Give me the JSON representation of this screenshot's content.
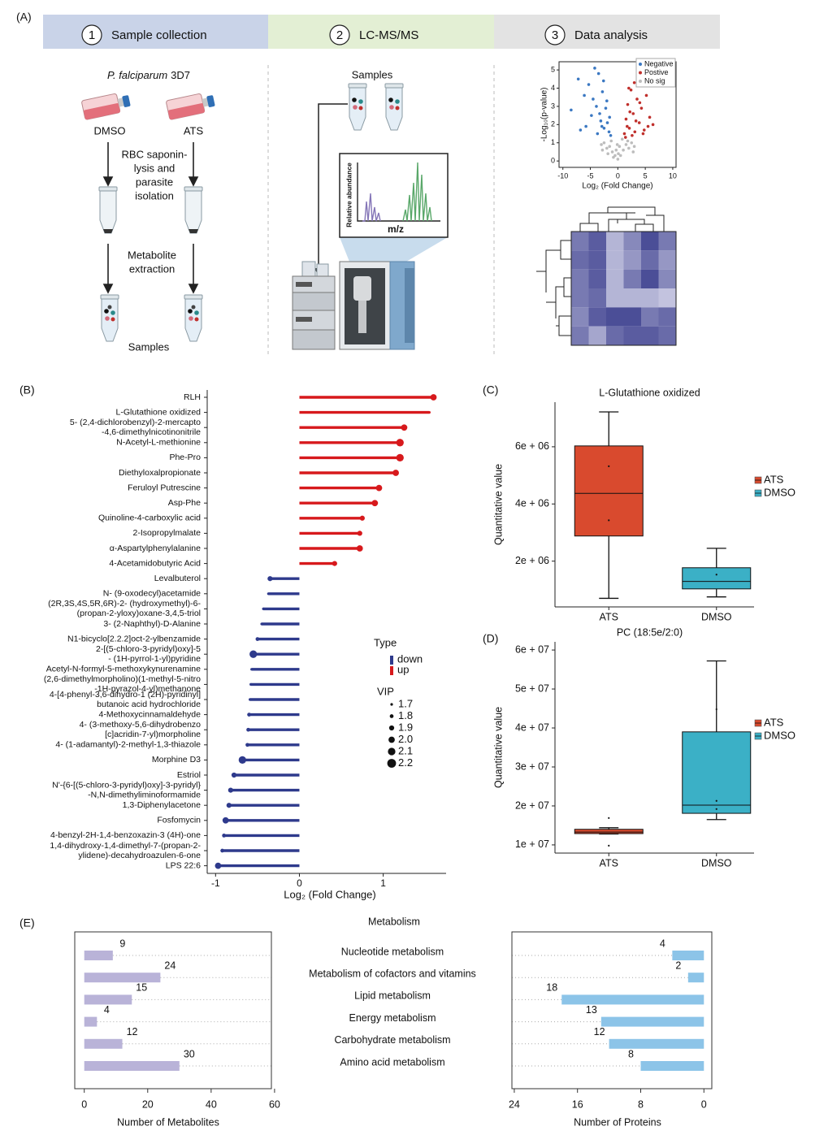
{
  "panel_labels": [
    "(A)",
    "(B)",
    "(C)",
    "(D)",
    "(E)"
  ],
  "workflow": {
    "steps": [
      {
        "number": "1",
        "label": "Sample collection"
      },
      {
        "number": "2",
        "label": "LC-MS/MS"
      },
      {
        "number": "3",
        "label": "Data analysis"
      }
    ],
    "organism": {
      "species": "P. falciparum",
      "strain": "3D7"
    },
    "conditions": [
      "DMSO",
      "ATS"
    ],
    "step_lysis": [
      "RBC saponin-",
      "lysis and",
      "parasite",
      "isolation"
    ],
    "step_extraction": [
      "Metabolite",
      "extraction"
    ],
    "samples_label": "Samples",
    "lcms_samples_label": "Samples",
    "spectrum": {
      "y_label": "Relative abundance",
      "x_label": "m/z"
    }
  },
  "chart_data": [
    {
      "type": "scatter",
      "x_label": "Log₂ (Fold Change)",
      "y_label": "-Log₁₀(p-value)",
      "xlim": [
        -10.7,
        10.6
      ],
      "ylim": [
        -0.35,
        5.45
      ],
      "xticks": [
        -10,
        -5,
        0,
        5,
        10
      ],
      "yticks": [
        0,
        1,
        2,
        3,
        4,
        5
      ],
      "series": [
        {
          "name": "Negative",
          "color": "#3b78c2",
          "x": [
            -8.5,
            -7.2,
            -6.1,
            -5.3,
            -4.8,
            -4.2,
            -3.9,
            -3.5,
            -3.1,
            -2.8,
            -2.5,
            -2.2,
            -1.9,
            -1.6,
            -1.3,
            -5.8,
            -4.5,
            -3.3,
            -2.6,
            -2.0,
            -1.5,
            -6.8,
            -3.7,
            -2.9
          ],
          "values": [
            2.8,
            4.5,
            3.6,
            4.2,
            2.5,
            5.1,
            3.0,
            4.8,
            2.2,
            3.8,
            1.8,
            2.9,
            2.1,
            1.6,
            1.4,
            1.9,
            3.4,
            2.6,
            4.4,
            3.3,
            2.4,
            1.7,
            1.5,
            1.9
          ]
        },
        {
          "name": "Postive",
          "color": "#c0302c",
          "x": [
            1.2,
            1.5,
            1.8,
            2.1,
            2.4,
            2.8,
            3.1,
            3.5,
            3.9,
            4.3,
            4.8,
            5.2,
            5.8,
            6.4,
            1.4,
            2.0,
            2.6,
            3.3,
            4.0,
            4.6,
            5.5,
            2.2,
            3.0,
            1.7
          ],
          "values": [
            1.5,
            2.3,
            3.1,
            1.8,
            3.9,
            2.6,
            1.6,
            3.4,
            2.1,
            2.9,
            1.7,
            3.6,
            2.4,
            2.0,
            1.3,
            4.0,
            1.4,
            2.2,
            3.2,
            1.5,
            1.9,
            2.7,
            4.3,
            1.9
          ]
        },
        {
          "name": "No sig",
          "color": "#bdbdbd",
          "x": [
            -3,
            -2.5,
            -2,
            -1.5,
            -1,
            -0.5,
            0,
            0.5,
            1,
            1.5,
            2,
            2.5,
            3,
            -1.2,
            -0.3,
            0.3,
            0.8,
            -0.8,
            1.8,
            -1.8,
            2.8,
            -2.8,
            0.1,
            -0.1
          ],
          "values": [
            0.9,
            1.0,
            0.7,
            0.8,
            0.5,
            0.3,
            0.1,
            0.3,
            0.6,
            0.9,
            0.7,
            1.0,
            0.8,
            1.1,
            0.6,
            0.8,
            1.2,
            0.2,
            1.1,
            0.4,
            0.5,
            0.6,
            0.4,
            0.9
          ]
        }
      ]
    },
    {
      "type": "heatmap",
      "low_color": "#d2d2e8",
      "high_color": "#3c3f8e",
      "values": [
        [
          0.6,
          0.8,
          0.2,
          0.5,
          0.9,
          0.6
        ],
        [
          0.7,
          0.8,
          0.2,
          0.4,
          0.7,
          0.4
        ],
        [
          0.6,
          0.8,
          0.2,
          0.6,
          0.9,
          0.5
        ],
        [
          0.6,
          0.7,
          0.2,
          0.2,
          0.2,
          0.1
        ],
        [
          0.5,
          0.8,
          0.9,
          0.9,
          0.6,
          0.7
        ],
        [
          0.6,
          0.3,
          0.7,
          0.8,
          0.8,
          0.7
        ]
      ]
    },
    {
      "type": "lollipop",
      "x_label": "Log₂ (Fold Change)",
      "xlim": [
        -1.1,
        1.75
      ],
      "xticks": [
        -1,
        0,
        1
      ],
      "categories": [
        "RLH",
        "L-Glutathione oxidized",
        [
          "5- (2,4-dichlorobenzyl)-2-mercapto",
          "-4,6-dimethylnicotinonitrile"
        ],
        "N-Acetyl-L-methionine",
        "Phe-Pro",
        "Diethyloxalpropionate",
        "Feruloyl Putrescine",
        "Asp-Phe",
        "Quinoline-4-carboxylic acid",
        "2-Isopropylmalate",
        "α-Aspartylphenylalanine",
        "4-Acetamidobutyric Acid",
        "Levalbuterol",
        "N- (9-oxodecyl)acetamide",
        [
          "(2R,3S,4S,5R,6R)-2- (hydroxymethyl)-6-",
          "(propan-2-yloxy)oxane-3,4,5-triol"
        ],
        "3- (2-Naphthyl)-D-Alanine",
        "N1-bicyclo[2.2.2]oct-2-ylbenzamide",
        [
          "2-[(5-chloro-3-pyridyl)oxy]-5",
          "- (1H-pyrrol-1-yl)pyridine"
        ],
        "Acetyl-N-formyl-5-methoxykynurenamine",
        [
          "(2,6-dimethylmorpholino)(1-methyl-5-nitro",
          "-1H-pyrazol-4-yl)methanone"
        ],
        [
          "4-[4-phenyl-3,6-dihydro-1 (2H)-pyridinyl]",
          "butanoic acid hydrochloride"
        ],
        "4-Methoxycinnamaldehyde",
        [
          "4- (3-methoxy-5,6-dihydrobenzo",
          "[c]acridin-7-yl)morpholine"
        ],
        "4- (1-adamantyl)-2-methyl-1,3-thiazole",
        "Morphine D3",
        "Estriol",
        [
          "N'-{6-[(5-chloro-3-pyridyl)oxy]-3-pyridyl}",
          "-N,N-dimethyliminoformamide"
        ],
        "1,3-Diphenylacetone",
        "Fosfomycin",
        "4-benzyl-2H-1,4-benzoxazin-3 (4H)-one",
        [
          "1,4-dihydroxy-1,4-dimethyl-7-(propan-2-",
          "ylidene)-decahydroazulen-6-one"
        ],
        "LPS 22:6"
      ],
      "values": [
        1.6,
        1.55,
        1.25,
        1.2,
        1.2,
        1.15,
        0.95,
        0.9,
        0.75,
        0.72,
        0.72,
        0.42,
        -0.35,
        -0.37,
        -0.43,
        -0.45,
        -0.5,
        -0.55,
        -0.57,
        -0.58,
        -0.59,
        -0.6,
        -0.61,
        -0.62,
        -0.68,
        -0.78,
        -0.82,
        -0.84,
        -0.88,
        -0.9,
        -0.92,
        -0.97
      ],
      "sizes": [
        2.0,
        1.7,
        2.0,
        2.1,
        2.1,
        2.0,
        2.0,
        2.0,
        1.9,
        1.9,
        2.0,
        1.9,
        1.9,
        1.7,
        1.7,
        1.7,
        1.8,
        2.1,
        1.7,
        1.7,
        1.7,
        1.8,
        1.8,
        1.8,
        2.1,
        1.9,
        1.9,
        1.9,
        2.0,
        1.8,
        1.8,
        2.0
      ],
      "legend": {
        "title": "Type",
        "entries": [
          {
            "name": "down",
            "color": "#2e3a8c"
          },
          {
            "name": "up",
            "color": "#d7191c"
          }
        ]
      },
      "size_legend": {
        "title": "VIP",
        "values": [
          1.7,
          1.8,
          1.9,
          {
            "value": 2,
            "label": "2.0"
          },
          2.1,
          2.2
        ]
      }
    },
    {
      "type": "box",
      "title": "L-Glutathione oxidized",
      "y_label": "Quantitative value",
      "categories": [
        "ATS",
        "DMSO"
      ],
      "ylim": [
        400000,
        7560000
      ],
      "yticks": [
        {
          "value": 2000000,
          "label": "2e + 06"
        },
        {
          "value": 4000000,
          "label": "4e + 06"
        },
        {
          "value": 6000000,
          "label": "6e + 06"
        }
      ],
      "series": [
        {
          "name": "ATS",
          "color": "#d94a2e",
          "min": 700000,
          "q1": 2880000,
          "median": 4370000,
          "q3": 6030000,
          "max": 7220000,
          "points": [
            5320000,
            3430000
          ]
        },
        {
          "name": "DMSO",
          "color": "#3bb0c6",
          "min": 750000,
          "q1": 1030000,
          "median": 1290000,
          "q3": 1770000,
          "max": 2450000,
          "points": [
            1530000
          ]
        }
      ]
    },
    {
      "type": "box",
      "title": "PC (18:5e/2:0)",
      "y_label": "Quantitative value",
      "categories": [
        "ATS",
        "DMSO"
      ],
      "ylim": [
        7900000,
        62100000
      ],
      "yticks": [
        {
          "value": 10000000,
          "label": "1e + 07"
        },
        {
          "value": 20000000,
          "label": "2e + 07"
        },
        {
          "value": 30000000,
          "label": "3e + 07"
        },
        {
          "value": 40000000,
          "label": "4e + 07"
        },
        {
          "value": 50000000,
          "label": "5e + 07"
        },
        {
          "value": 60000000,
          "label": "6e + 07"
        }
      ],
      "series": [
        {
          "name": "ATS",
          "color": "#d94a2e",
          "min": 12800000,
          "q1": 12900000,
          "median": 13300000,
          "q3": 14000000,
          "max": 14400000,
          "points": [
            16900000,
            9800000
          ]
        },
        {
          "name": "DMSO",
          "color": "#3bb0c6",
          "min": 16500000,
          "q1": 18100000,
          "median": 20200000,
          "q3": 39000000,
          "max": 57200000,
          "points": [
            44800000,
            21300000,
            19200000
          ]
        }
      ]
    },
    {
      "type": "butterfly",
      "title": "Metabolism",
      "categories": [
        "Nucleotide metabolism",
        "Metabolism of cofactors and vitamins",
        "Lipid metabolism",
        "Energy metabolism",
        "Carbohydrate metabolism",
        "Amino acid metabolism"
      ],
      "panels": [
        {
          "x_label": "Number of Metabolites",
          "color": "#b9b3d8",
          "xlim": [
            -3,
            59
          ],
          "xticks": [
            0,
            20,
            40,
            60
          ],
          "values": [
            9,
            24,
            15,
            4,
            12,
            30
          ]
        },
        {
          "x_label": "Number of Proteins",
          "color": "#8cc4e8",
          "xlim": [
            24.3,
            -1
          ],
          "xticks": [
            24,
            16,
            8,
            0
          ],
          "values": [
            4,
            2,
            18,
            13,
            12,
            8
          ]
        }
      ]
    }
  ]
}
